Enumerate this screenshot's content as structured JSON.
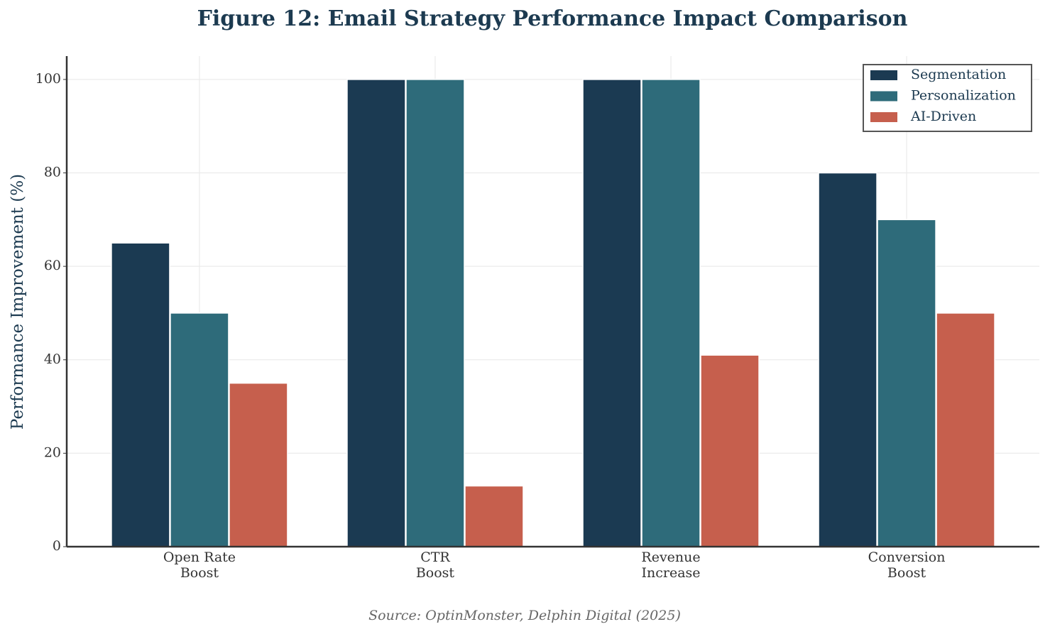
{
  "chart_data": {
    "type": "bar",
    "title": "Figure 12: Email Strategy Performance Impact Comparison",
    "ylabel": "Performance Improvement (%)",
    "source": "Source: OptinMonster, Delphin Digital (2025)",
    "categories": [
      "Open Rate\nBoost",
      "CTR\nBoost",
      "Revenue\nIncrease",
      "Conversion\nBoost"
    ],
    "series": [
      {
        "name": "Segmentation",
        "color": "#1b3a52",
        "values": [
          65,
          100,
          100,
          80
        ]
      },
      {
        "name": "Personalization",
        "color": "#2e6b7a",
        "values": [
          50,
          100,
          100,
          70
        ]
      },
      {
        "name": "AI-Driven",
        "color": "#c65f4d",
        "values": [
          35,
          13,
          41,
          50
        ]
      }
    ],
    "ylim": [
      0,
      105
    ],
    "yticks": [
      0,
      20,
      40,
      60,
      80,
      100
    ],
    "grid": true,
    "legend": "upper right"
  }
}
